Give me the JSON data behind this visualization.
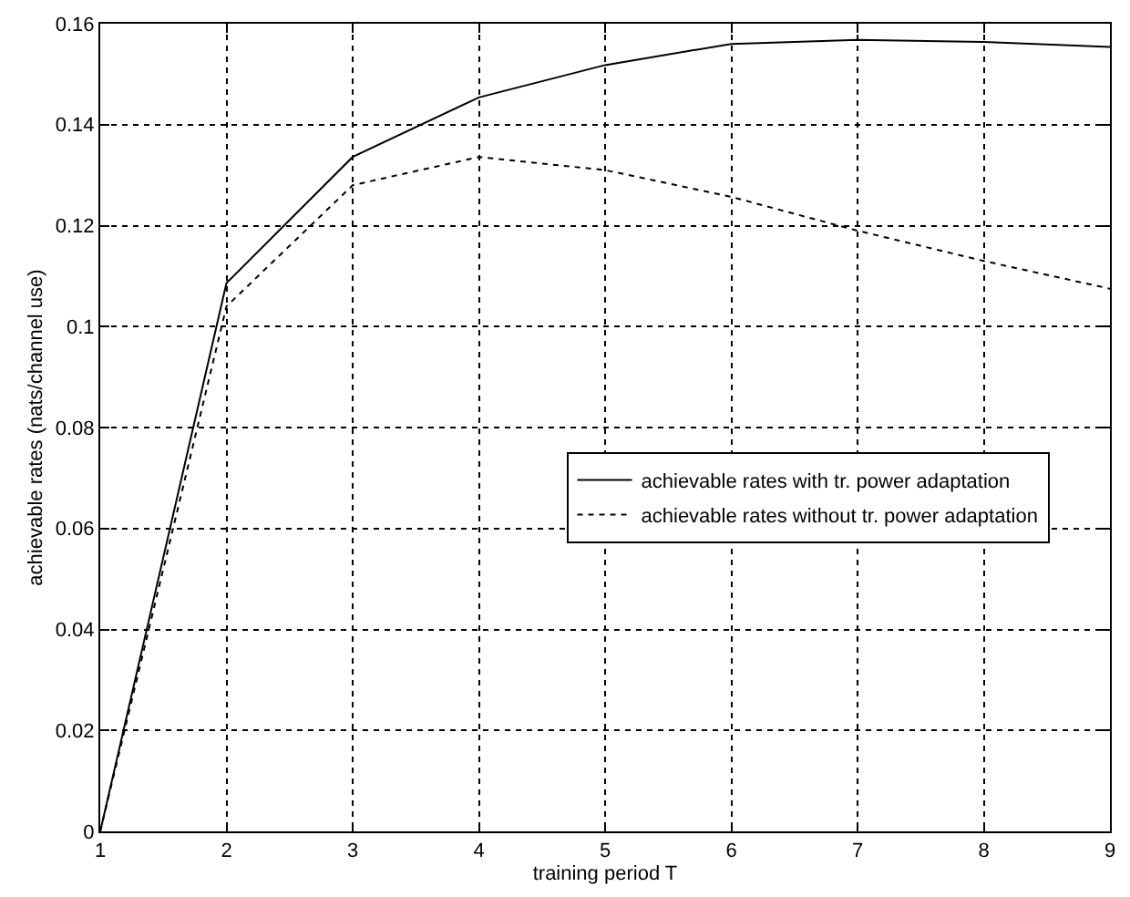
{
  "chart_data": {
    "type": "line",
    "xlabel": "training period T",
    "ylabel": "achievable rates (nats/channel use)",
    "x": [
      1,
      2,
      3,
      4,
      5,
      6,
      7,
      8,
      9
    ],
    "series": [
      {
        "name": "achievable rates with tr. power adaptation",
        "color": "#000000",
        "line_style": "solid",
        "values": [
          0,
          0.1086,
          0.1336,
          0.1454,
          0.1518,
          0.156,
          0.1568,
          0.1564,
          0.1554
        ]
      },
      {
        "name": "achievable rates without tr. power adaptation",
        "color": "#000000",
        "line_style": "dotted",
        "values": [
          0,
          0.104,
          0.128,
          0.1336,
          0.131,
          0.1257,
          0.119,
          0.113,
          0.1075
        ]
      }
    ],
    "xlim": [
      1,
      9
    ],
    "xticks": [
      1,
      2,
      3,
      4,
      5,
      6,
      7,
      8,
      9
    ],
    "ylim": [
      0,
      0.16
    ],
    "yticks": [
      {
        "value": 0,
        "label": "0"
      },
      0.02,
      0.04,
      0.06,
      0.08,
      {
        "value": 0.1,
        "label": "0.1"
      },
      0.12,
      0.14,
      0.16
    ],
    "grid": true,
    "legend": "right",
    "marker": "none"
  }
}
